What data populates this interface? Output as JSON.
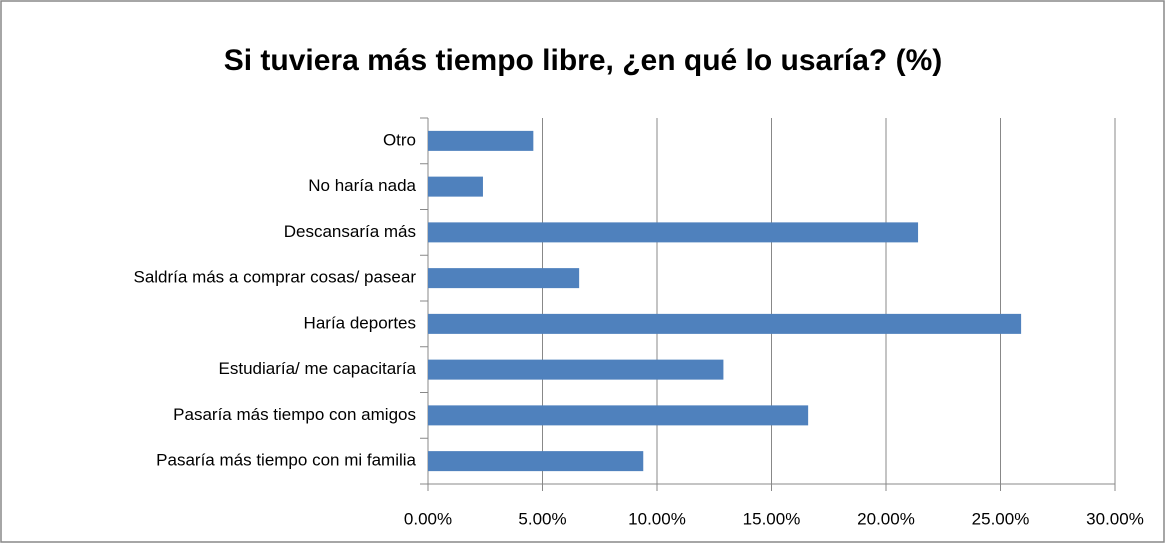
{
  "chart_data": {
    "type": "hbar",
    "title": "Si tuviera más tiempo libre, ¿en qué lo usaría? (%)",
    "categories": [
      "Otro",
      "No haría nada",
      "Descansaría más",
      "Saldría más a comprar cosas/ pasear",
      "Haría deportes",
      "Estudiaría/ me capacitaría",
      "Pasaría más tiempo con amigos",
      "Pasaría más tiempo con mi familia"
    ],
    "values": [
      4.6,
      2.4,
      21.4,
      6.6,
      25.9,
      12.9,
      16.6,
      9.4
    ],
    "color": "#4f81bd",
    "xlim": [
      0,
      30
    ],
    "xticks": [
      {
        "value": 0,
        "label": "0.00%"
      },
      {
        "value": 5,
        "label": "5.00%"
      },
      {
        "value": 10,
        "label": "10.00%"
      },
      {
        "value": 15,
        "label": "15.00%"
      },
      {
        "value": 20,
        "label": "20.00%"
      },
      {
        "value": 25,
        "label": "25.00%"
      },
      {
        "value": 30,
        "label": "30.00%"
      }
    ],
    "grid": true
  }
}
